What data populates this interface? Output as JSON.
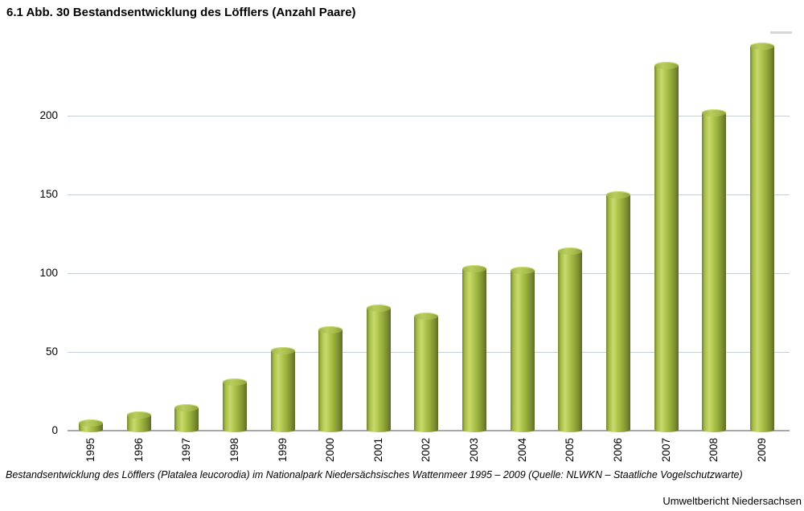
{
  "title": "6.1 Abb. 30 Bestandsentwicklung des Löfflers (Anzahl Paare)",
  "caption": "Bestandsentwicklung des Löfflers (Platalea leucorodia) im Nationalpark Niedersächsisches Wattenmeer 1995 – 2009 (Quelle: NLWKN – Staatliche Vogelschutzwarte)",
  "footer": "Umweltbericht Niedersachsen",
  "chart_data": {
    "type": "bar",
    "title": "6.1 Abb. 30 Bestandsentwicklung des Löfflers (Anzahl Paare)",
    "categories": [
      "1995",
      "1996",
      "1997",
      "1998",
      "1999",
      "2000",
      "2001",
      "2002",
      "2003",
      "2004",
      "2005",
      "2006",
      "2007",
      "2008",
      "2009"
    ],
    "values": [
      5,
      10,
      15,
      31,
      51,
      64,
      78,
      73,
      103,
      102,
      114,
      150,
      232,
      202,
      244
    ],
    "xlabel": "",
    "ylabel": "",
    "yticks": [
      0,
      50,
      100,
      150,
      200
    ],
    "ylim": [
      0,
      253
    ],
    "grid": true,
    "legend": "none",
    "bar_style": "3d-cylinder",
    "colors": {
      "bar_left_edge": "#76852e",
      "bar_highlight": "#c8da6a",
      "bar_mid": "#9cb43d",
      "bar_right_edge": "#5e6c26",
      "cap_fill": "#a6bc4b",
      "cap_rim": "#ccdd7a",
      "gridline": "#c9cfd6",
      "baseline": "#a6a8aa",
      "legend_dash": "#d6d6d6",
      "text": "#000000"
    }
  }
}
